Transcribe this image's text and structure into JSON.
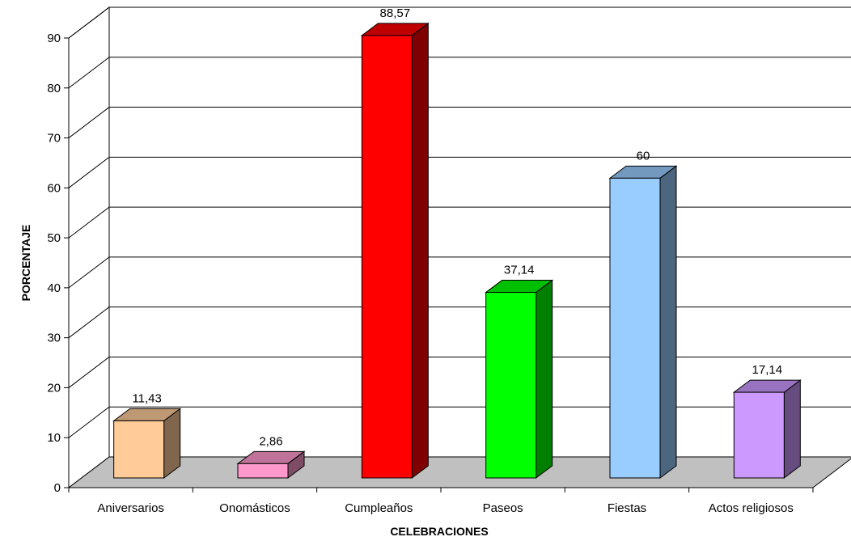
{
  "chart_data": {
    "type": "bar",
    "style": "3d-column",
    "categories": [
      "Aniversarios",
      "Onomásticos",
      "Cumpleaños",
      "Paseos",
      "Fiestas",
      "Actos religiosos"
    ],
    "values": [
      11.43,
      2.86,
      88.57,
      37.14,
      60,
      17.14
    ],
    "data_labels": [
      "11,43",
      "2,86",
      "88,57",
      "37,14",
      "60",
      "17,14"
    ],
    "colors": [
      "#FFCC99",
      "#FF99CC",
      "#FF0000",
      "#00FF00",
      "#99CCFF",
      "#CC99FF"
    ],
    "side_colors": [
      "#7F664C",
      "#7F4C66",
      "#7F0000",
      "#007F00",
      "#4C667F",
      "#664C7F"
    ],
    "top_colors": [
      "#BF9973",
      "#BF7399",
      "#BF0000",
      "#00BF00",
      "#7399BF",
      "#9973BF"
    ],
    "xlabel": "CELEBRACIONES",
    "ylabel": "PORCENTAJE",
    "yticks": [
      0,
      10,
      20,
      30,
      40,
      50,
      60,
      70,
      80,
      90
    ],
    "ylim": [
      0,
      90
    ],
    "grid": true,
    "floor_color": "#C0C0C0"
  }
}
